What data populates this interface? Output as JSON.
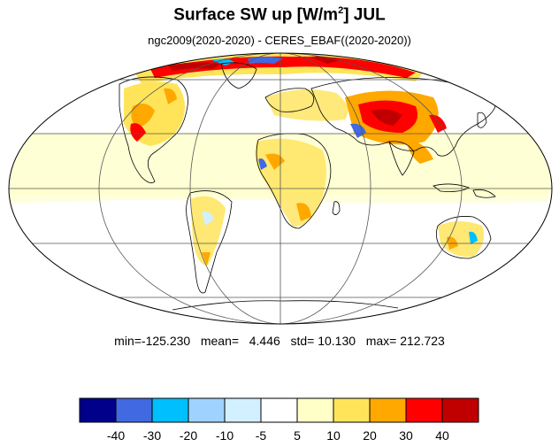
{
  "title": {
    "main": "Surface SW up [W/m",
    "sup": "2",
    "tail": "]  JUL"
  },
  "subtitle": "ngc2009(2020-2020) - CERES_EBAF((2020-2020))",
  "stats": {
    "min_label": "min=",
    "min": "-125.230",
    "mean_label": "mean=",
    "mean": "4.446",
    "std_label": "std=",
    "std": "10.130",
    "max_label": "max=",
    "max": "212.723"
  },
  "colorbar": {
    "colors": [
      "#00008b",
      "#4169e1",
      "#00bfff",
      "#a0d2ff",
      "#d2f0ff",
      "#ffffff",
      "#ffffc8",
      "#ffe45a",
      "#ffa800",
      "#ff0000",
      "#c00000"
    ],
    "labels": [
      "-40",
      "-30",
      "-20",
      "-10",
      "-5",
      "5",
      "10",
      "20",
      "30",
      "40"
    ]
  },
  "map": {
    "projection": "Mollweide",
    "grid_meridians_deg": [
      -120,
      -60,
      0,
      60,
      120
    ],
    "grid_parallels_deg": [
      -60,
      -30,
      0,
      30,
      60
    ]
  }
}
